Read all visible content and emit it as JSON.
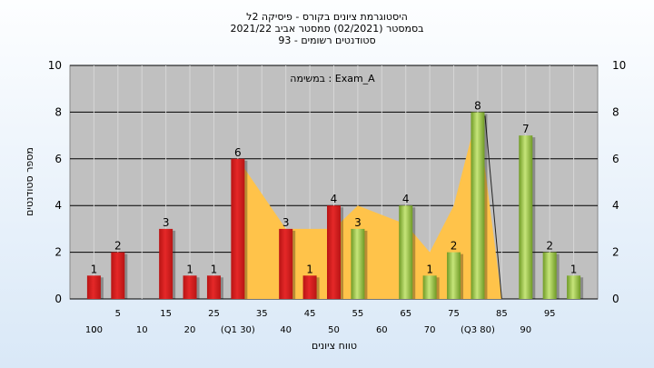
{
  "chart_data": {
    "type": "bar",
    "title_lines": [
      "היסטוגרמת ציונים בקורס - פיסיקה 2ל",
      "בסמסטר  (02/2021)  סמסטר אביב 2021/22",
      "סטודנטים רשומים - 93"
    ],
    "annotation": "במשימה : Exam_A",
    "ylabel": "מספר סטודנטים",
    "xlabel": "טווח ציונים",
    "ylim": [
      0,
      10
    ],
    "yticks": [
      "0",
      "2",
      "4",
      "6",
      "8",
      "10"
    ],
    "x_tick_labels_top": [
      "5",
      "15",
      "25",
      "35",
      "45",
      "55",
      "65",
      "75",
      "85",
      "95"
    ],
    "x_tick_labels_bottom": [
      "0",
      "10",
      "20",
      "(Q1 30)",
      "40",
      "50",
      "60",
      "70",
      "(Q3 80)",
      "90",
      "100"
    ],
    "bars": [
      {
        "x": 0,
        "value": 1,
        "color": "red"
      },
      {
        "x": 5,
        "value": 2,
        "color": "red"
      },
      {
        "x": 15,
        "value": 3,
        "color": "red"
      },
      {
        "x": 20,
        "value": 1,
        "color": "red"
      },
      {
        "x": 25,
        "value": 1,
        "color": "red"
      },
      {
        "x": 30,
        "value": 6,
        "color": "red"
      },
      {
        "x": 40,
        "value": 3,
        "color": "red"
      },
      {
        "x": 45,
        "value": 1,
        "color": "red"
      },
      {
        "x": 50,
        "value": 4,
        "color": "red"
      },
      {
        "x": 55,
        "value": 3,
        "color": "green"
      },
      {
        "x": 65,
        "value": 4,
        "color": "green"
      },
      {
        "x": 70,
        "value": 1,
        "color": "green"
      },
      {
        "x": 75,
        "value": 2,
        "color": "green"
      },
      {
        "x": 80,
        "value": 8,
        "color": "green"
      },
      {
        "x": 90,
        "value": 7,
        "color": "green"
      },
      {
        "x": 95,
        "value": 2,
        "color": "green"
      },
      {
        "x": 100,
        "value": 1,
        "color": "green"
      }
    ],
    "area": [
      [
        30,
        6
      ],
      [
        40,
        3
      ],
      [
        50,
        3
      ],
      [
        55,
        4
      ],
      [
        65,
        3.2
      ],
      [
        70,
        2
      ],
      [
        75,
        4
      ],
      [
        80,
        8
      ],
      [
        85,
        0
      ]
    ],
    "grid": true,
    "colors": {
      "red": "#e52828",
      "green": "#9ccc45",
      "area": "#ffc34a",
      "plot_bg": "#c0c0c0"
    }
  }
}
